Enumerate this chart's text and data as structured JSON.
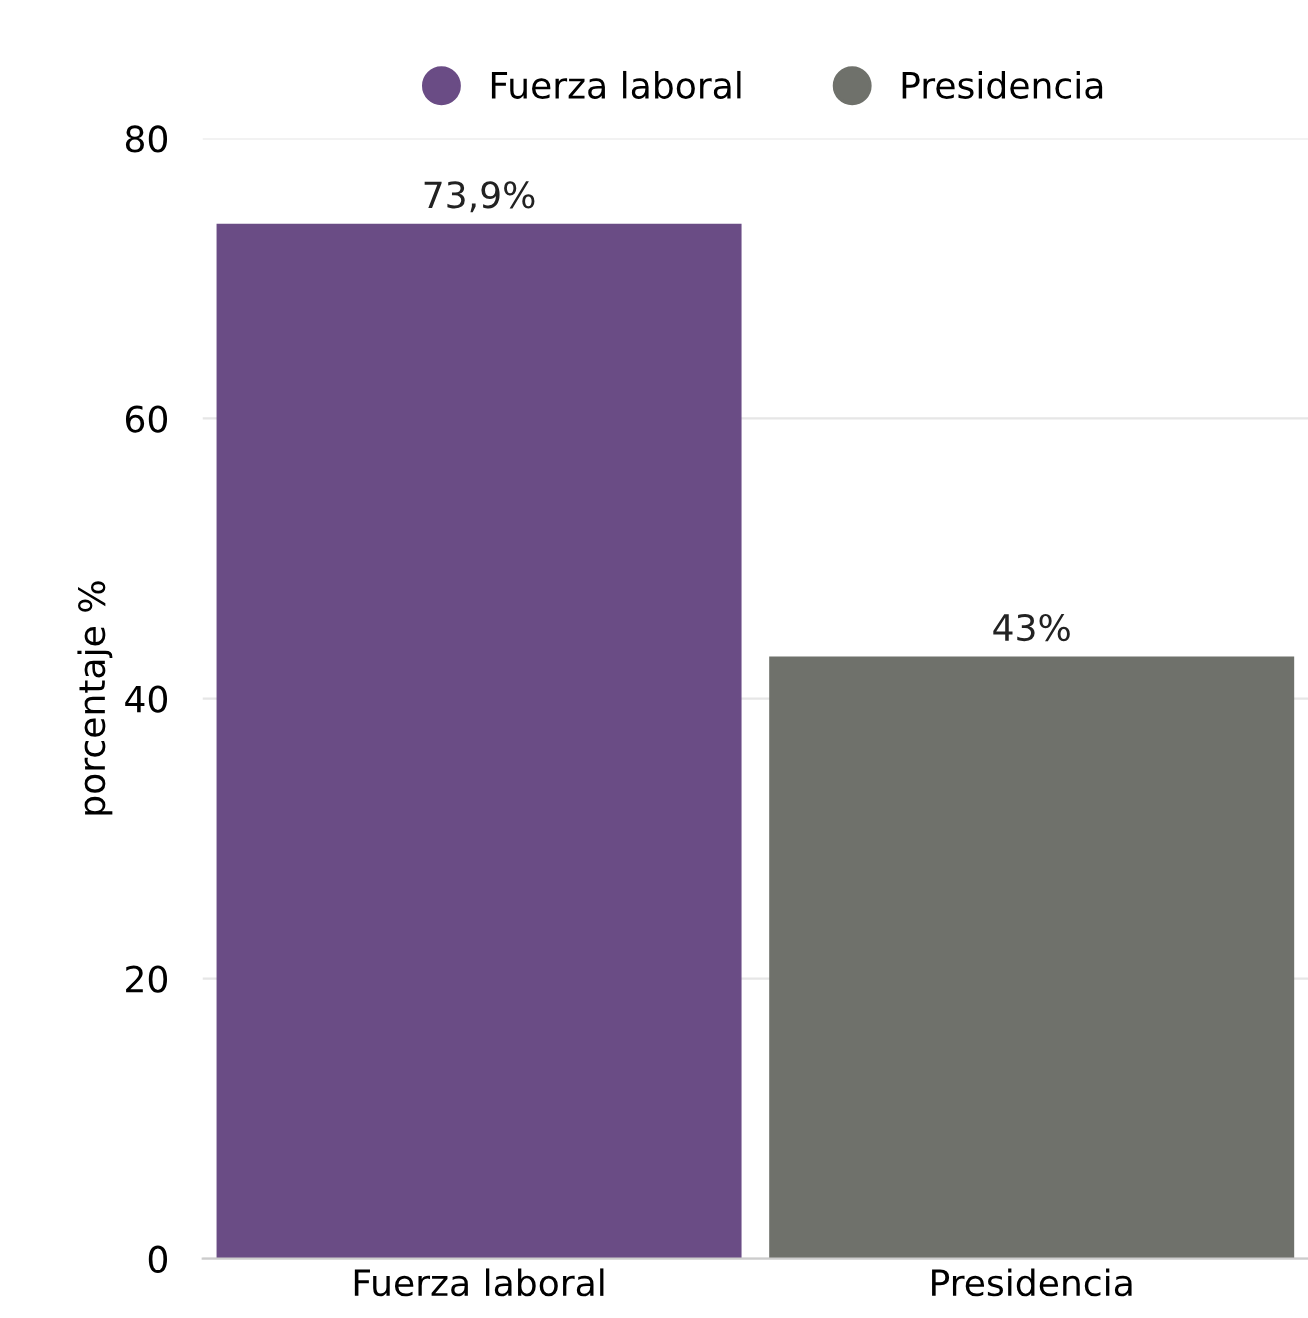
{
  "chart_data": {
    "type": "bar",
    "ylabel": "porcentaje %",
    "categories": [
      "Fuerza laboral",
      "Presidencia"
    ],
    "series": [
      {
        "name": "Fuerza laboral",
        "color": "#6a4c85",
        "values": [
          73.9,
          null
        ],
        "value_labels": [
          "73,9%",
          null
        ]
      },
      {
        "name": "Presidencia",
        "color": "#6f716b",
        "values": [
          null,
          43
        ],
        "value_labels": [
          null,
          "43%"
        ]
      }
    ],
    "ylim": [
      0,
      80
    ],
    "yticks": [
      0,
      20,
      40,
      60,
      80
    ],
    "grid": "y",
    "legend": "top",
    "marker": "circle"
  }
}
